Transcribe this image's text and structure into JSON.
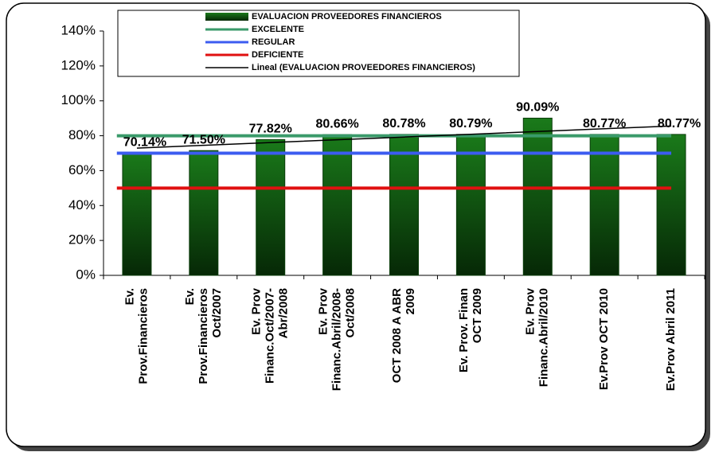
{
  "chart_data": {
    "type": "bar",
    "categories": [
      [
        "Ev.",
        "Prov.Financieros"
      ],
      [
        "Ev.",
        "Prov.Financieros",
        "Oct/2007"
      ],
      [
        "Ev. Prov",
        "Financ.Oct/2007-",
        "Abr/2008"
      ],
      [
        "Ev. Prov",
        "Financ.Abril/2008-",
        "Oct/2008"
      ],
      [
        "OCT 2008 A ABR",
        "2009"
      ],
      [
        "Ev. Prov. Finan",
        "OCT 2009"
      ],
      [
        "Ev. Prov",
        "Financ.Abril/2010"
      ],
      [
        "Ev.Prov OCT 2010"
      ],
      [
        "Ev.Prov Abril 2011"
      ]
    ],
    "series": [
      {
        "name": "EVALUACION  PROVEEDORES  FINANCIEROS",
        "type": "bar",
        "color": "#0b5e0b",
        "values": [
          70.14,
          71.5,
          77.82,
          80.66,
          80.78,
          80.79,
          90.09,
          80.77,
          80.77
        ],
        "value_labels": [
          "70.14%",
          "71.50%",
          "77.82%",
          "80.66%",
          "80.78%",
          "80.79%",
          "90.09%",
          "80.77%",
          "80.77%"
        ]
      },
      {
        "name": "EXCELENTE",
        "type": "line",
        "color": "#3a9a6a",
        "values": [
          80,
          80,
          80,
          80,
          80,
          80,
          80,
          80,
          80
        ]
      },
      {
        "name": "REGULAR",
        "type": "line",
        "color": "#3c5cf0",
        "values": [
          70,
          70,
          70,
          70,
          70,
          70,
          70,
          70,
          70
        ]
      },
      {
        "name": "DEFICIENTE",
        "type": "line",
        "color": "#e01010",
        "values": [
          50,
          50,
          50,
          50,
          50,
          50,
          50,
          50,
          50
        ]
      },
      {
        "name": "Lineal (EVALUACION  PROVEEDORES  FINANCIEROS)",
        "type": "line",
        "color": "#000000",
        "values": [
          72.93,
          74.51,
          76.09,
          77.68,
          79.26,
          80.84,
          82.43,
          84.01,
          85.59
        ]
      }
    ],
    "ylim": [
      0,
      140
    ],
    "yticks": [
      {
        "value": 0,
        "label": "0%"
      },
      {
        "value": 20,
        "label": "20%"
      },
      {
        "value": 40,
        "label": "40%"
      },
      {
        "value": 60,
        "label": "60%"
      },
      {
        "value": 80,
        "label": "80%"
      },
      {
        "value": 100,
        "label": "100%"
      },
      {
        "value": 120,
        "label": "120%"
      },
      {
        "value": 140,
        "label": "140%"
      }
    ],
    "grid": false,
    "legend": "top"
  }
}
